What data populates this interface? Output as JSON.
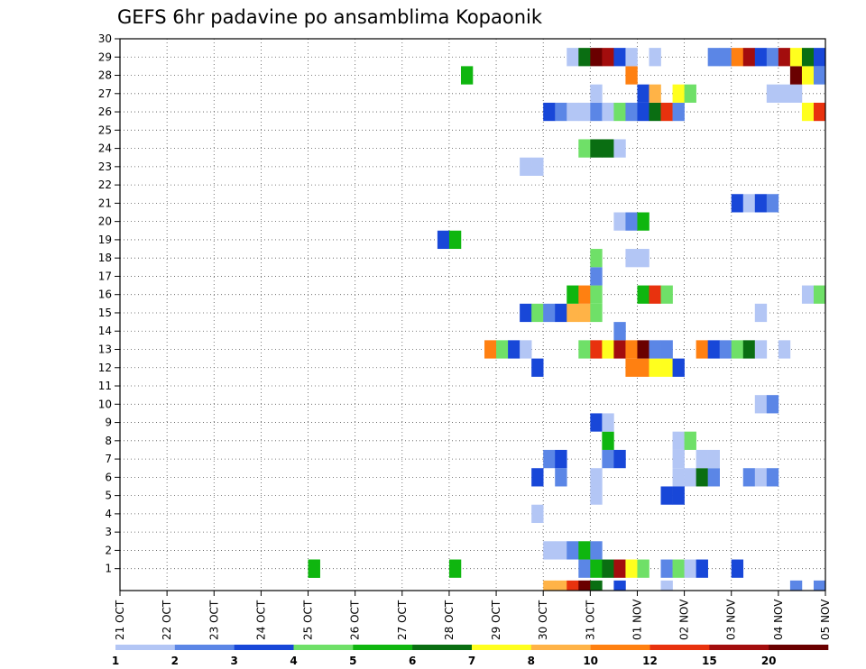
{
  "chart_data": {
    "type": "heatmap",
    "title": "GEFS 6hr padavine po ansamblima Kopaonik",
    "x_tick_labels": [
      "21 OCT",
      "22 OCT",
      "23 OCT",
      "24 OCT",
      "25 OCT",
      "26 OCT",
      "27 OCT",
      "28 OCT",
      "29 OCT",
      "30 OCT",
      "31 OCT",
      "01 NOV",
      "02 NOV",
      "03 NOV",
      "04 NOV",
      "05 NOV"
    ],
    "y_tick_labels": [
      "1",
      "2",
      "3",
      "4",
      "5",
      "6",
      "7",
      "8",
      "9",
      "10",
      "11",
      "12",
      "13",
      "14",
      "15",
      "16",
      "17",
      "18",
      "19",
      "20",
      "21",
      "22",
      "23",
      "24",
      "25",
      "26",
      "27",
      "28",
      "29",
      "30"
    ],
    "y_range": [
      0,
      30
    ],
    "x_range_days": [
      0,
      15
    ],
    "time_step_hours": 6,
    "grid": "dotted",
    "colorbar": {
      "position": "bottom",
      "tick_labels": [
        "1",
        "2",
        "3",
        "4",
        "5",
        "6",
        "7",
        "8",
        "10",
        "12",
        "15",
        "20"
      ],
      "colors": [
        "#b3c6f5",
        "#5b86e6",
        "#1847d8",
        "#6fe068",
        "#0fb60f",
        "#0a6e12",
        "#ffff1e",
        "#ffb347",
        "#ff8011",
        "#e8320e",
        "#a30d0d",
        "#6a0000"
      ]
    },
    "cells": [
      {
        "row": 0,
        "col": 36,
        "c": 7
      },
      {
        "row": 0,
        "col": 37,
        "c": 7
      },
      {
        "row": 0,
        "col": 38,
        "c": 9
      },
      {
        "row": 0,
        "col": 39,
        "c": 11
      },
      {
        "row": 0,
        "col": 40,
        "c": 5
      },
      {
        "row": 0,
        "col": 42,
        "c": 2
      },
      {
        "row": 0,
        "col": 46,
        "c": 0
      },
      {
        "row": 0,
        "col": 57,
        "c": 1
      },
      {
        "row": 0,
        "col": 59,
        "c": 1
      },
      {
        "row": 1,
        "col": 16,
        "c": 4
      },
      {
        "row": 1,
        "col": 16,
        "c": 4
      },
      {
        "row": 1,
        "col": 28,
        "c": 4
      },
      {
        "row": 1,
        "col": 39,
        "c": 1
      },
      {
        "row": 1,
        "col": 40,
        "c": 4
      },
      {
        "row": 1,
        "col": 41,
        "c": 5
      },
      {
        "row": 1,
        "col": 42,
        "c": 10
      },
      {
        "row": 1,
        "col": 43,
        "c": 6
      },
      {
        "row": 1,
        "col": 44,
        "c": 3
      },
      {
        "row": 1,
        "col": 46,
        "c": 1
      },
      {
        "row": 1,
        "col": 47,
        "c": 3
      },
      {
        "row": 1,
        "col": 48,
        "c": 0
      },
      {
        "row": 1,
        "col": 49,
        "c": 2
      },
      {
        "row": 1,
        "col": 52,
        "c": 2
      },
      {
        "row": 2,
        "col": 36,
        "c": 0
      },
      {
        "row": 2,
        "col": 37,
        "c": 0
      },
      {
        "row": 2,
        "col": 38,
        "c": 1
      },
      {
        "row": 2,
        "col": 39,
        "c": 4
      },
      {
        "row": 2,
        "col": 40,
        "c": 1
      },
      {
        "row": 4,
        "col": 35,
        "c": 0
      },
      {
        "row": 5,
        "col": 40,
        "c": 0
      },
      {
        "row": 5,
        "col": 46,
        "c": 2
      },
      {
        "row": 5,
        "col": 47,
        "c": 2
      },
      {
        "row": 6,
        "col": 35,
        "c": 2
      },
      {
        "row": 6,
        "col": 37,
        "c": 1
      },
      {
        "row": 6,
        "col": 40,
        "c": 0
      },
      {
        "row": 6,
        "col": 47,
        "c": 0
      },
      {
        "row": 6,
        "col": 48,
        "c": 0
      },
      {
        "row": 6,
        "col": 49,
        "c": 5
      },
      {
        "row": 6,
        "col": 50,
        "c": 1
      },
      {
        "row": 6,
        "col": 53,
        "c": 1
      },
      {
        "row": 6,
        "col": 54,
        "c": 0
      },
      {
        "row": 6,
        "col": 55,
        "c": 1
      },
      {
        "row": 7,
        "col": 36,
        "c": 1
      },
      {
        "row": 7,
        "col": 37,
        "c": 2
      },
      {
        "row": 7,
        "col": 41,
        "c": 1
      },
      {
        "row": 7,
        "col": 42,
        "c": 2
      },
      {
        "row": 7,
        "col": 47,
        "c": 0
      },
      {
        "row": 7,
        "col": 49,
        "c": 0
      },
      {
        "row": 7,
        "col": 50,
        "c": 0
      },
      {
        "row": 8,
        "col": 41,
        "c": 4
      },
      {
        "row": 8,
        "col": 47,
        "c": 0
      },
      {
        "row": 8,
        "col": 48,
        "c": 3
      },
      {
        "row": 9,
        "col": 40,
        "c": 2
      },
      {
        "row": 9,
        "col": 41,
        "c": 0
      },
      {
        "row": 10,
        "col": 54,
        "c": 0
      },
      {
        "row": 10,
        "col": 55,
        "c": 1
      },
      {
        "row": 12,
        "col": 35,
        "c": 2
      },
      {
        "row": 12,
        "col": 43,
        "c": 8
      },
      {
        "row": 12,
        "col": 44,
        "c": 8
      },
      {
        "row": 12,
        "col": 45,
        "c": 6
      },
      {
        "row": 12,
        "col": 46,
        "c": 6
      },
      {
        "row": 12,
        "col": 47,
        "c": 2
      },
      {
        "row": 13,
        "col": 31,
        "c": 8
      },
      {
        "row": 13,
        "col": 32,
        "c": 3
      },
      {
        "row": 13,
        "col": 33,
        "c": 2
      },
      {
        "row": 13,
        "col": 34,
        "c": 0
      },
      {
        "row": 13,
        "col": 39,
        "c": 3
      },
      {
        "row": 13,
        "col": 40,
        "c": 9
      },
      {
        "row": 13,
        "col": 41,
        "c": 6
      },
      {
        "row": 13,
        "col": 42,
        "c": 10
      },
      {
        "row": 13,
        "col": 43,
        "c": 8
      },
      {
        "row": 13,
        "col": 44,
        "c": 11
      },
      {
        "row": 13,
        "col": 45,
        "c": 1
      },
      {
        "row": 13,
        "col": 46,
        "c": 1
      },
      {
        "row": 13,
        "col": 49,
        "c": 8
      },
      {
        "row": 13,
        "col": 50,
        "c": 2
      },
      {
        "row": 13,
        "col": 51,
        "c": 1
      },
      {
        "row": 13,
        "col": 52,
        "c": 3
      },
      {
        "row": 13,
        "col": 53,
        "c": 5
      },
      {
        "row": 13,
        "col": 54,
        "c": 0
      },
      {
        "row": 13,
        "col": 56,
        "c": 0
      },
      {
        "row": 14,
        "col": 42,
        "c": 1
      },
      {
        "row": 15,
        "col": 34,
        "c": 2
      },
      {
        "row": 15,
        "col": 35,
        "c": 3
      },
      {
        "row": 15,
        "col": 36,
        "c": 1
      },
      {
        "row": 15,
        "col": 37,
        "c": 2
      },
      {
        "row": 15,
        "col": 38,
        "c": 7
      },
      {
        "row": 15,
        "col": 39,
        "c": 7
      },
      {
        "row": 15,
        "col": 40,
        "c": 3
      },
      {
        "row": 15,
        "col": 54,
        "c": 0
      },
      {
        "row": 16,
        "col": 38,
        "c": 4
      },
      {
        "row": 16,
        "col": 39,
        "c": 8
      },
      {
        "row": 16,
        "col": 40,
        "c": 3
      },
      {
        "row": 16,
        "col": 44,
        "c": 4
      },
      {
        "row": 16,
        "col": 45,
        "c": 9
      },
      {
        "row": 16,
        "col": 46,
        "c": 3
      },
      {
        "row": 16,
        "col": 58,
        "c": 0
      },
      {
        "row": 16,
        "col": 59,
        "c": 3
      },
      {
        "row": 17,
        "col": 40,
        "c": 1
      },
      {
        "row": 18,
        "col": 40,
        "c": 3
      },
      {
        "row": 18,
        "col": 43,
        "c": 0
      },
      {
        "row": 18,
        "col": 44,
        "c": 0
      },
      {
        "row": 19,
        "col": 27,
        "c": 2
      },
      {
        "row": 19,
        "col": 28,
        "c": 4
      },
      {
        "row": 20,
        "col": 42,
        "c": 0
      },
      {
        "row": 20,
        "col": 43,
        "c": 1
      },
      {
        "row": 20,
        "col": 44,
        "c": 4
      },
      {
        "row": 21,
        "col": 52,
        "c": 2
      },
      {
        "row": 21,
        "col": 53,
        "c": 0
      },
      {
        "row": 21,
        "col": 54,
        "c": 2
      },
      {
        "row": 21,
        "col": 55,
        "c": 1
      },
      {
        "row": 23,
        "col": 34,
        "c": 0
      },
      {
        "row": 23,
        "col": 35,
        "c": 0
      },
      {
        "row": 24,
        "col": 39,
        "c": 3
      },
      {
        "row": 24,
        "col": 40,
        "c": 5
      },
      {
        "row": 24,
        "col": 41,
        "c": 5
      },
      {
        "row": 24,
        "col": 42,
        "c": 0
      },
      {
        "row": 26,
        "col": 36,
        "c": 2
      },
      {
        "row": 26,
        "col": 37,
        "c": 1
      },
      {
        "row": 26,
        "col": 38,
        "c": 0
      },
      {
        "row": 26,
        "col": 39,
        "c": 0
      },
      {
        "row": 26,
        "col": 40,
        "c": 1
      },
      {
        "row": 26,
        "col": 41,
        "c": 0
      },
      {
        "row": 26,
        "col": 42,
        "c": 3
      },
      {
        "row": 26,
        "col": 43,
        "c": 1
      },
      {
        "row": 26,
        "col": 44,
        "c": 2
      },
      {
        "row": 26,
        "col": 45,
        "c": 5
      },
      {
        "row": 26,
        "col": 46,
        "c": 9
      },
      {
        "row": 26,
        "col": 47,
        "c": 1
      },
      {
        "row": 26,
        "col": 58,
        "c": 6
      },
      {
        "row": 26,
        "col": 59,
        "c": 9
      },
      {
        "row": 27,
        "col": 40,
        "c": 0
      },
      {
        "row": 27,
        "col": 44,
        "c": 2
      },
      {
        "row": 27,
        "col": 45,
        "c": 7
      },
      {
        "row": 27,
        "col": 47,
        "c": 6
      },
      {
        "row": 27,
        "col": 48,
        "c": 3
      },
      {
        "row": 27,
        "col": 55,
        "c": 0
      },
      {
        "row": 27,
        "col": 56,
        "c": 0
      },
      {
        "row": 27,
        "col": 57,
        "c": 0
      },
      {
        "row": 28,
        "col": 29,
        "c": 4
      },
      {
        "row": 28,
        "col": 43,
        "c": 8
      },
      {
        "row": 28,
        "col": 57,
        "c": 11
      },
      {
        "row": 28,
        "col": 58,
        "c": 6
      },
      {
        "row": 28,
        "col": 59,
        "c": 1
      },
      {
        "row": 29,
        "col": 38,
        "c": 0
      },
      {
        "row": 29,
        "col": 39,
        "c": 5
      },
      {
        "row": 29,
        "col": 40,
        "c": 11
      },
      {
        "row": 29,
        "col": 41,
        "c": 10
      },
      {
        "row": 29,
        "col": 42,
        "c": 2
      },
      {
        "row": 29,
        "col": 43,
        "c": 0
      },
      {
        "row": 29,
        "col": 45,
        "c": 0
      },
      {
        "row": 29,
        "col": 50,
        "c": 1
      },
      {
        "row": 29,
        "col": 51,
        "c": 1
      },
      {
        "row": 29,
        "col": 52,
        "c": 8
      },
      {
        "row": 29,
        "col": 53,
        "c": 10
      },
      {
        "row": 29,
        "col": 54,
        "c": 2
      },
      {
        "row": 29,
        "col": 55,
        "c": 1
      },
      {
        "row": 29,
        "col": 56,
        "c": 10
      },
      {
        "row": 29,
        "col": 57,
        "c": 6
      },
      {
        "row": 29,
        "col": 58,
        "c": 5
      },
      {
        "row": 29,
        "col": 59,
        "c": 2
      }
    ]
  }
}
